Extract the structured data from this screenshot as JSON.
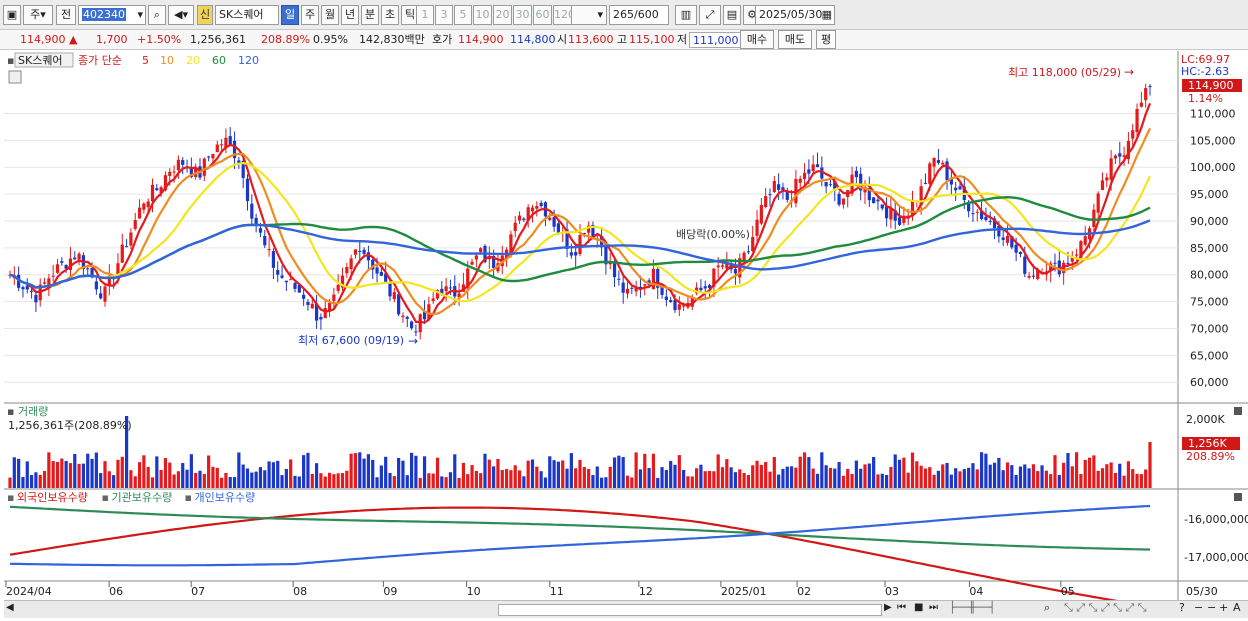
{
  "toolbar": {
    "period_label": "주",
    "compare_label": "전",
    "stock_code": "402340",
    "new_badge": "신",
    "stock_name": "SK스퀘어",
    "period_tabs": [
      "일",
      "주",
      "월",
      "년",
      "분",
      "초",
      "틱"
    ],
    "active_period": "일",
    "interval_tabs": [
      "1",
      "3",
      "5",
      "10",
      "20",
      "30",
      "60",
      "120"
    ],
    "count_value": "265",
    "count_max": "/600",
    "date_value": "2025/05/30"
  },
  "infobar": {
    "price": "114,900",
    "change": "1,700",
    "change_pct": "+1.50%",
    "volume": "1,256,361",
    "volume_ratio": "208.89%",
    "turnover": "0.95%",
    "amount": "142,830백만",
    "bid_label": "호가",
    "bid1": "114,900",
    "bid2": "114,800",
    "open_label": "시",
    "open_value": "113,600",
    "high_label": "고",
    "high_value": "115,100",
    "low_label": "저",
    "low_value": "111,000",
    "buy_button": "매수",
    "sell_button": "매도",
    "eval_button": "평"
  },
  "price_panel": {
    "stock_label": "SK스퀘어",
    "ma_prefix": "종가 단순",
    "ma_periods": [
      "5",
      "10",
      "20",
      "60",
      "120"
    ],
    "ma_colors": [
      "#e41a1c",
      "#f08c1e",
      "#f2e61e",
      "#1e8c3c",
      "#3264dc"
    ],
    "lc_label": "LC:69.97",
    "hc_label": "HC:-2.63",
    "current_tag": "114,900",
    "current_pct": "1.14%",
    "high_annotation": "최고 118,000 (05/29)",
    "low_annotation": "최저 67,600 (09/19)",
    "dividend_annotation": "배당락(0.00%)"
  },
  "volume_panel": {
    "title": "거래량",
    "value_text": "1,256,361주(208.89%)",
    "axis_label": "2,000K",
    "current_tag": "1,256K",
    "current_pct": "208.89%"
  },
  "holder_panel": {
    "legend": [
      "외국인보유수량",
      "기관보유수량",
      "개인보유수량"
    ],
    "legend_colors": [
      "#d01818",
      "#2e8b57",
      "#3264dc"
    ],
    "axis_labels": [
      "-16,000,000",
      "-17,000,000"
    ]
  },
  "x_axis": {
    "labels": [
      "2024/04",
      "06",
      "07",
      "08",
      "09",
      "10",
      "11",
      "12",
      "2025/01",
      "02",
      "03",
      "04",
      "05"
    ],
    "end_label": "05/30"
  },
  "chart_data": {
    "type": "candlestick",
    "y_ticks": [
      110000,
      105000,
      100000,
      95000,
      90000,
      85000,
      80000,
      75000,
      70000,
      65000,
      60000
    ],
    "ylim": [
      56500,
      120500
    ],
    "high_point": {
      "value": 118000,
      "date": "05/29"
    },
    "low_point": {
      "value": 67600,
      "date": "09/19"
    },
    "last_close": 114900,
    "closes": [
      80000,
      78000,
      76000,
      80000,
      82000,
      84000,
      80000,
      76000,
      82000,
      88000,
      94000,
      96000,
      100000,
      101000,
      98000,
      103000,
      105000,
      102000,
      92000,
      85000,
      80000,
      78000,
      76000,
      72000,
      74000,
      80000,
      86000,
      82000,
      78000,
      74000,
      70000,
      72000,
      78000,
      76000,
      80000,
      84000,
      82000,
      86000,
      90000,
      94000,
      92000,
      88000,
      84000,
      90000,
      86000,
      80000,
      76000,
      78000,
      80000,
      76000,
      74000,
      76000,
      78000,
      82000,
      80000,
      84000,
      92000,
      96000,
      94000,
      98000,
      100000,
      96000,
      94000,
      98000,
      95000,
      93000,
      90000,
      92000,
      96000,
      102000,
      98000,
      94000,
      92000,
      90000,
      88000,
      84000,
      80000,
      82000,
      81000,
      83000,
      86000,
      93000,
      100000,
      103000,
      110000,
      114900
    ]
  }
}
